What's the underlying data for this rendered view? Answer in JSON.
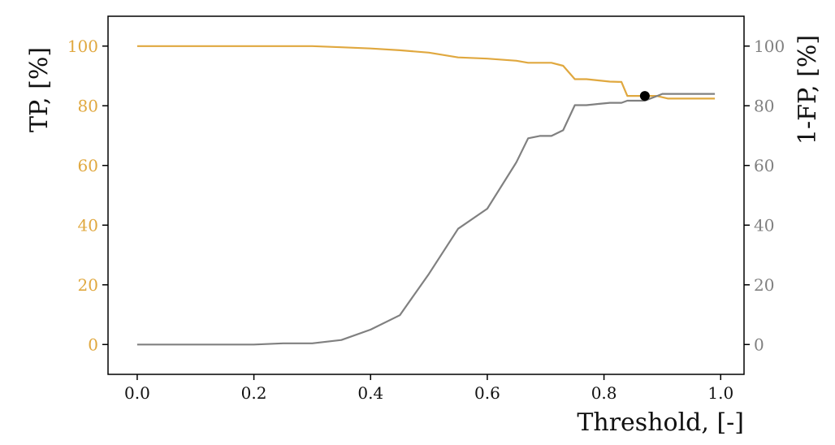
{
  "chart_data": {
    "type": "line",
    "xlabel": "Threshold, [-]",
    "ylabel_left": "TP, [%]",
    "ylabel_right": "1-FP, [%]",
    "xlim": [
      -0.05,
      1.04
    ],
    "ylim": [
      -10,
      110
    ],
    "x_ticks": [
      0.0,
      0.2,
      0.4,
      0.6,
      0.8,
      1.0
    ],
    "x_tick_labels": [
      "0.0",
      "0.2",
      "0.4",
      "0.6",
      "0.8",
      "1.0"
    ],
    "y_ticks": [
      0,
      20,
      40,
      60,
      80,
      100
    ],
    "y_tick_labels": [
      "0",
      "20",
      "40",
      "60",
      "80",
      "100"
    ],
    "grid": false,
    "colors": {
      "tp": "#e0a83f",
      "fp": "#808080",
      "marker": "#000000",
      "axis": "#000000"
    },
    "series": [
      {
        "axis": "left",
        "color": "#e0a83f",
        "x": [
          0.0,
          0.05,
          0.1,
          0.15,
          0.2,
          0.25,
          0.3,
          0.35,
          0.4,
          0.45,
          0.5,
          0.55,
          0.6,
          0.65,
          0.67,
          0.69,
          0.71,
          0.73,
          0.75,
          0.77,
          0.79,
          0.81,
          0.83,
          0.84,
          0.86,
          0.87,
          0.89,
          0.91,
          0.93,
          0.95,
          0.99
        ],
        "values": [
          100,
          100,
          100,
          100,
          100,
          100,
          100,
          99.6,
          99.2,
          98.6,
          97.8,
          96.2,
          95.8,
          95.1,
          94.4,
          94.4,
          94.4,
          93.4,
          88.9,
          88.9,
          88.5,
          88.1,
          88.0,
          83.3,
          83.3,
          83.3,
          83.3,
          82.4,
          82.4,
          82.4,
          82.4
        ]
      },
      {
        "axis": "right",
        "color": "#808080",
        "x": [
          0.0,
          0.05,
          0.1,
          0.15,
          0.2,
          0.25,
          0.3,
          0.35,
          0.4,
          0.45,
          0.5,
          0.55,
          0.6,
          0.65,
          0.67,
          0.69,
          0.71,
          0.73,
          0.75,
          0.77,
          0.79,
          0.81,
          0.83,
          0.84,
          0.86,
          0.87,
          0.89,
          0.9,
          0.93,
          0.95,
          0.99
        ],
        "values": [
          0,
          0,
          0,
          0,
          0,
          0.4,
          0.4,
          1.5,
          5.0,
          9.8,
          23.7,
          38.8,
          45.5,
          61.1,
          69.1,
          69.9,
          69.9,
          71.8,
          80.2,
          80.2,
          80.6,
          81.0,
          81.0,
          81.7,
          81.7,
          81.7,
          83.2,
          84.0,
          84.0,
          84.0,
          84.0
        ]
      }
    ],
    "marker": {
      "x": 0.87,
      "y": 83.3
    }
  }
}
